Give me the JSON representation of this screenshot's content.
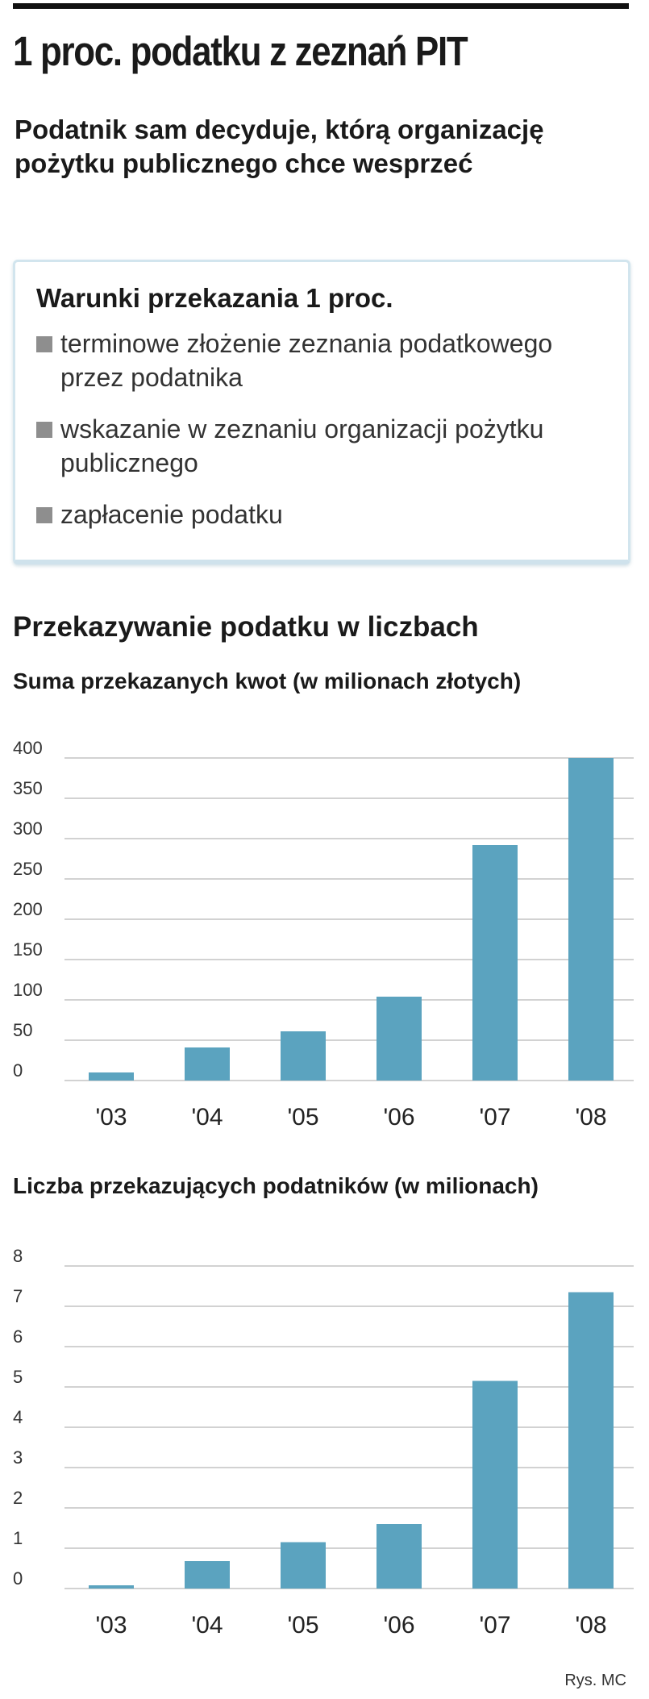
{
  "title": "1 proc. podatku z zeznań PIT",
  "subtitle": "Podatnik sam decyduje, którą organizację pożytku publicznego chce wesprzeć",
  "conditions": {
    "title": "Warunki przekazania 1 proc.",
    "items": [
      "terminowe złożenie zeznania podatkowego przez podatnika",
      "wskazanie w zeznaniu organizacji pożytku publicznego",
      "zapłacenie podatku"
    ]
  },
  "section_heading": "Przekazywanie podatku w liczbach",
  "credit": "Rys. MC",
  "colors": {
    "bar": "#5ba3bf",
    "grid": "#c4c4c4",
    "bullet": "#8e8e8e"
  },
  "chart_data": [
    {
      "type": "bar",
      "title": "Suma przekazanych kwot (w milionach złotych)",
      "categories": [
        "'03",
        "'04",
        "'05",
        "'06",
        "'07",
        "'08"
      ],
      "values": [
        10,
        41,
        61,
        104,
        292,
        400
      ],
      "ylim": [
        0,
        400
      ],
      "yticks": [
        0,
        50,
        100,
        150,
        200,
        250,
        300,
        350,
        400
      ],
      "xlabel": "",
      "ylabel": "",
      "grid": true
    },
    {
      "type": "bar",
      "title": "Liczba przekazujących podatników (w milionach)",
      "categories": [
        "'03",
        "'04",
        "'05",
        "'06",
        "'07",
        "'08"
      ],
      "values": [
        0.08,
        0.68,
        1.15,
        1.6,
        5.15,
        7.35
      ],
      "ylim": [
        0,
        8
      ],
      "yticks": [
        0,
        1,
        2,
        3,
        4,
        5,
        6,
        7,
        8
      ],
      "xlabel": "",
      "ylabel": "",
      "grid": true
    }
  ]
}
